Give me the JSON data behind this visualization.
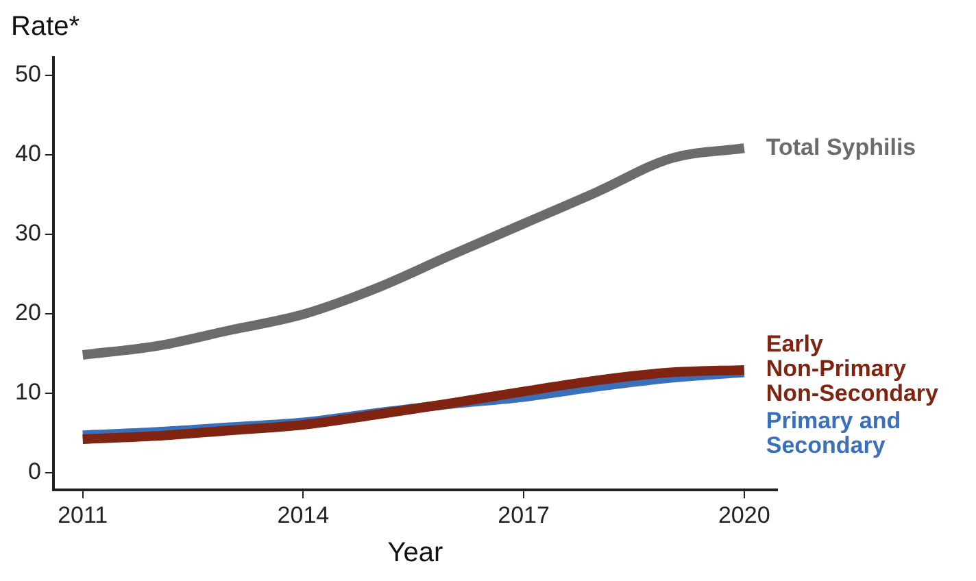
{
  "chart_data": {
    "type": "line",
    "xlabel": "Year",
    "ylabel": "Rate*",
    "x": [
      2011,
      2012,
      2013,
      2014,
      2015,
      2016,
      2017,
      2018,
      2019,
      2020
    ],
    "series": [
      {
        "name": "Total Syphilis",
        "color": "#6b6b6b",
        "values": [
          14.8,
          15.9,
          17.9,
          19.9,
          23.2,
          27.3,
          31.3,
          35.3,
          39.5,
          40.8
        ]
      },
      {
        "name": "Early Non-Primary Non-Secondary",
        "color": "#7f2410",
        "values": [
          4.2,
          4.6,
          5.3,
          6.0,
          7.3,
          8.7,
          10.2,
          11.6,
          12.6,
          12.9
        ]
      },
      {
        "name": "Primary and Secondary",
        "color": "#3a6fba",
        "values": [
          4.7,
          5.1,
          5.7,
          6.3,
          7.5,
          8.6,
          9.5,
          10.8,
          11.9,
          12.6
        ]
      }
    ],
    "xlim": [
      2010.6,
      2020.45
    ],
    "xticks": [
      2011,
      2014,
      2017,
      2020
    ],
    "ylim": [
      -2.2,
      52.2
    ],
    "yticks": [
      0,
      10,
      20,
      30,
      40,
      50
    ],
    "grid": false,
    "legend": false,
    "marker": "none",
    "line_style": "solid"
  }
}
